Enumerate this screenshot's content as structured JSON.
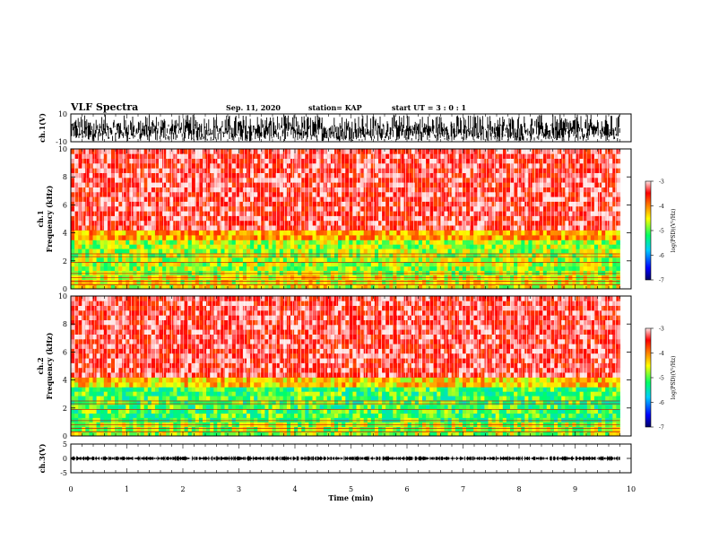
{
  "header": {
    "title": "VLF Spectra",
    "date": "Sep. 11, 2020",
    "station": "station= KAP",
    "start": "start  UT =   3 : 0  : 1"
  },
  "chart_data": [
    {
      "type": "line",
      "id": "ch1-waveform",
      "ylabel": "ch.1(V)",
      "xlim": [
        0,
        10
      ],
      "ylim": [
        -10,
        10
      ],
      "ytick_labels": [
        "10",
        "-10"
      ],
      "data_end_min": 9.8,
      "amplitude_range": [
        -10,
        10
      ],
      "description_values": {
        "min": -10,
        "max": 10
      }
    },
    {
      "type": "heatmap",
      "id": "ch1-spectrogram",
      "ylabel": "ch.1\nFrequency (kHz)",
      "ylabel_lines": [
        "ch.1",
        "Frequency (kHz)"
      ],
      "xlim": [
        0,
        10
      ],
      "ylim": [
        0,
        10
      ],
      "ytick_labels": [
        "0",
        "2",
        "4",
        "6",
        "8",
        "10"
      ],
      "data_end_min": 9.8,
      "bands_khz": [
        {
          "from": 0,
          "to": 1.0,
          "level": -4.6
        },
        {
          "from": 1.0,
          "to": 3.5,
          "level": -4.8
        },
        {
          "from": 3.5,
          "to": 4.2,
          "level": -4.2
        },
        {
          "from": 4.2,
          "to": 10,
          "level": -3.4
        }
      ],
      "colorbar": {
        "min": -7,
        "max": -3,
        "label": "log(PSD)(V²/Hz)",
        "tick_labels": [
          "-3",
          "-4",
          "-5",
          "-6",
          "-7"
        ]
      }
    },
    {
      "type": "heatmap",
      "id": "ch2-spectrogram",
      "ylabel": "ch.2\nFrequency (kHz)",
      "ylabel_lines": [
        "ch.2",
        "Frequency (kHz)"
      ],
      "xlim": [
        0,
        10
      ],
      "ylim": [
        0,
        10
      ],
      "ytick_labels": [
        "0",
        "2",
        "4",
        "6",
        "8",
        "10"
      ],
      "data_end_min": 9.8,
      "bands_khz": [
        {
          "from": 0,
          "to": 1.0,
          "level": -4.8
        },
        {
          "from": 1.0,
          "to": 3.5,
          "level": -5.1
        },
        {
          "from": 3.5,
          "to": 4.2,
          "level": -4.4
        },
        {
          "from": 4.2,
          "to": 10,
          "level": -3.4
        }
      ],
      "colorbar": {
        "min": -7,
        "max": -3,
        "label": "log(PSD)(V²/Hz)",
        "tick_labels": [
          "-3",
          "-4",
          "-5",
          "-6",
          "-7"
        ]
      }
    },
    {
      "type": "line",
      "id": "ch3-waveform",
      "ylabel": "ch.3(V)",
      "xlim": [
        0,
        10
      ],
      "ylim": [
        -5,
        5
      ],
      "ytick_labels": [
        "5",
        "0",
        "-5"
      ],
      "data_end_min": 9.8,
      "amplitude_range": [
        -0.8,
        0.8
      ],
      "xlabel": "Time (min)",
      "xtick_labels": [
        "0",
        "1",
        "2",
        "3",
        "4",
        "5",
        "6",
        "7",
        "8",
        "9",
        "10"
      ]
    }
  ],
  "colors": {
    "waveform": "#000000",
    "colormap": [
      "#00008b",
      "#0000ff",
      "#00ffff",
      "#00ff66",
      "#ffff00",
      "#ff9900",
      "#ff0000",
      "#ffffff"
    ]
  }
}
